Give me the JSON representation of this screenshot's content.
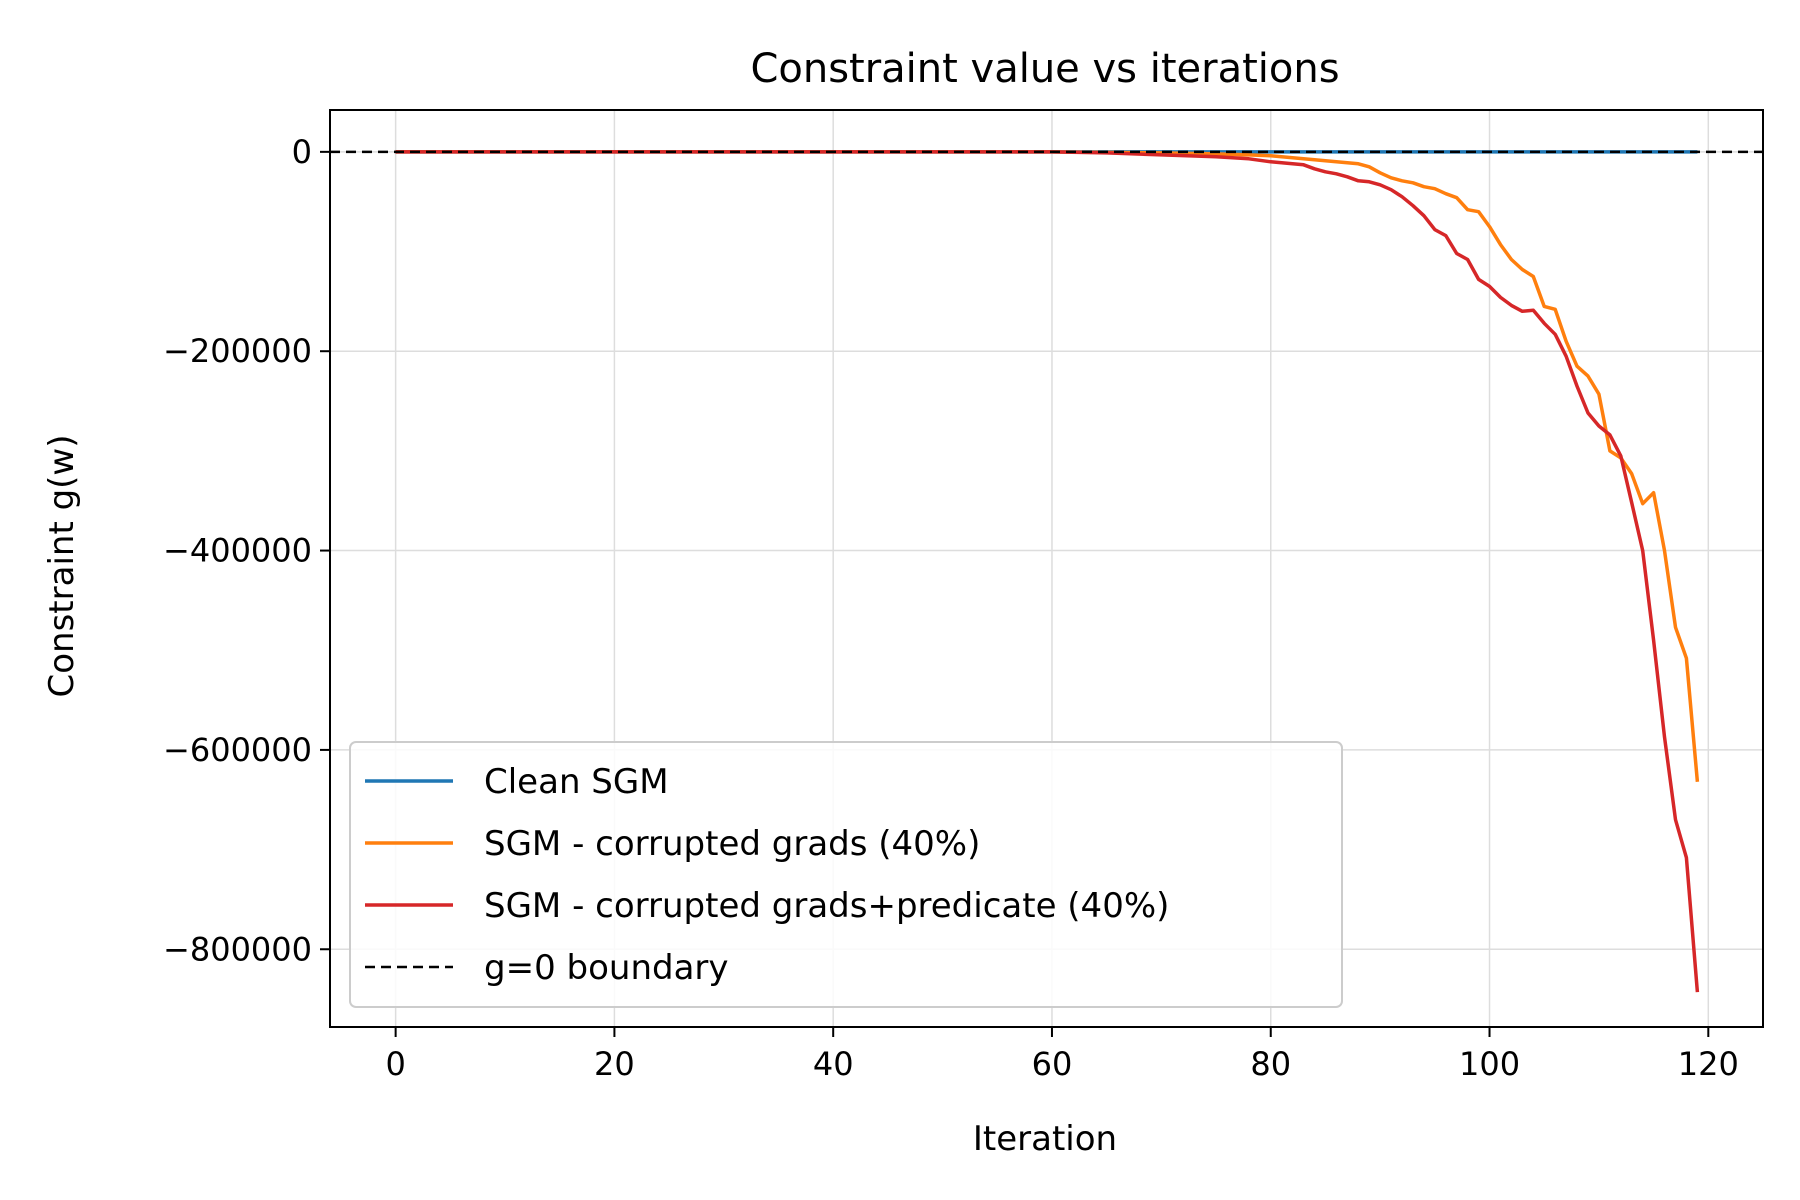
{
  "chart_data": {
    "type": "line",
    "title": "Constraint value vs iterations",
    "xlabel": "Iteration",
    "ylabel": "Constraint g(w)",
    "xlim": [
      -6,
      125
    ],
    "ylim": [
      -878000,
      42000
    ],
    "xticks": [
      0,
      20,
      40,
      60,
      80,
      100,
      120
    ],
    "xtick_labels": [
      "0",
      "20",
      "40",
      "60",
      "80",
      "100",
      "120"
    ],
    "yticks": [
      0,
      -200000,
      -400000,
      -600000,
      -800000
    ],
    "ytick_labels": [
      "0",
      "−200000",
      "−400000",
      "−600000",
      "−800000"
    ],
    "grid": true,
    "legend_position": "lower-left",
    "series": [
      {
        "name": "Clean SGM",
        "color": "#1f77b4",
        "style": "solid",
        "x": [
          0,
          119
        ],
        "y": [
          0,
          0
        ]
      },
      {
        "name": "SGM - corrupted grads (40%)",
        "color": "#ff7f0e",
        "style": "solid",
        "x": [
          0,
          20,
          40,
          60,
          65,
          70,
          75,
          78,
          80,
          82,
          84,
          86,
          88,
          89,
          90,
          91,
          92,
          93,
          94,
          95,
          96,
          97,
          98,
          99,
          100,
          101,
          102,
          103,
          104,
          105,
          106,
          107,
          108,
          109,
          110,
          111,
          112,
          113,
          114,
          115,
          116,
          117,
          118,
          119
        ],
        "y": [
          0,
          0,
          0,
          0,
          -500,
          -1000,
          -2000,
          -3000,
          -4000,
          -6000,
          -8000,
          -10000,
          -12000,
          -15000,
          -21000,
          -26000,
          -29000,
          -31000,
          -35000,
          -37000,
          -42000,
          -46000,
          -58000,
          -60000,
          -75000,
          -93000,
          -108000,
          -118000,
          -125000,
          -155000,
          -158000,
          -190000,
          -215000,
          -225000,
          -243000,
          -300000,
          -307000,
          -323000,
          -353000,
          -342000,
          -400000,
          -477000,
          -508000,
          -632000
        ]
      },
      {
        "name": "SGM - corrupted grads+predicate (40%)",
        "color": "#d62728",
        "style": "solid",
        "x": [
          0,
          20,
          40,
          60,
          65,
          70,
          75,
          78,
          80,
          81,
          82,
          83,
          84,
          85,
          86,
          87,
          88,
          89,
          90,
          91,
          92,
          93,
          94,
          95,
          96,
          97,
          98,
          99,
          100,
          101,
          102,
          103,
          104,
          105,
          106,
          107,
          108,
          109,
          110,
          111,
          112,
          113,
          114,
          115,
          116,
          117,
          118,
          119
        ],
        "y": [
          0,
          0,
          0,
          0,
          -1000,
          -3000,
          -5000,
          -7000,
          -10000,
          -11000,
          -12000,
          -13000,
          -17000,
          -20000,
          -22000,
          -25000,
          -29000,
          -30000,
          -33000,
          -38000,
          -45000,
          -54000,
          -64000,
          -78000,
          -84000,
          -102000,
          -108000,
          -128000,
          -135000,
          -146000,
          -154000,
          -160000,
          -159000,
          -172000,
          -183000,
          -205000,
          -235000,
          -262000,
          -275000,
          -284000,
          -305000,
          -352000,
          -400000,
          -490000,
          -587000,
          -670000,
          -708000,
          -843000
        ]
      },
      {
        "name": "g=0 boundary",
        "color": "#000000",
        "style": "dashed",
        "x": [
          -6,
          125
        ],
        "y": [
          0,
          0
        ]
      }
    ]
  }
}
